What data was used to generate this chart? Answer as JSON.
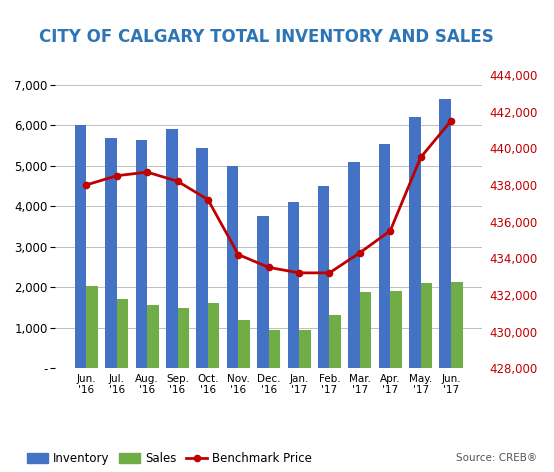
{
  "title": "CITY OF CALGARY TOTAL INVENTORY AND SALES",
  "categories": [
    "Jun.\n'16",
    "Jul.\n'16",
    "Aug.\n'16",
    "Sep.\n'16",
    "Oct.\n'16",
    "Nov.\n'16",
    "Dec.\n'16",
    "Jan.\n'17",
    "Feb.\n'17",
    "Mar.\n'17",
    "Apr.\n'17",
    "May.\n'17",
    "Jun.\n'17"
  ],
  "inventory": [
    6000,
    5700,
    5650,
    5900,
    5450,
    5000,
    3750,
    4100,
    4500,
    5100,
    5550,
    6200,
    6650
  ],
  "sales": [
    2020,
    1720,
    1550,
    1480,
    1620,
    1200,
    950,
    950,
    1320,
    1880,
    1900,
    2100,
    2120
  ],
  "benchmark_price": [
    438000,
    438500,
    438700,
    438200,
    437200,
    434200,
    433500,
    433200,
    433200,
    434300,
    435500,
    439500,
    441500
  ],
  "inventory_color": "#4472C4",
  "sales_color": "#70AD47",
  "benchmark_color": "#C00000",
  "title_color": "#2E75B6",
  "left_ylim": [
    0,
    7700
  ],
  "left_yticks": [
    0,
    1000,
    2000,
    3000,
    4000,
    5000,
    6000,
    7000
  ],
  "left_ytick_labels": [
    "-",
    "1,000",
    "2,000",
    "3,000",
    "4,000",
    "5,000",
    "6,000",
    "7,000"
  ],
  "right_ylim": [
    428000,
    445000
  ],
  "right_yticks": [
    428000,
    430000,
    432000,
    434000,
    436000,
    438000,
    440000,
    442000,
    444000
  ],
  "source_text": "Source: CREB®",
  "legend_labels": [
    "Inventory",
    "Sales",
    "Benchmark Price"
  ],
  "title_fontsize": 12,
  "tick_fontsize": 8.5
}
